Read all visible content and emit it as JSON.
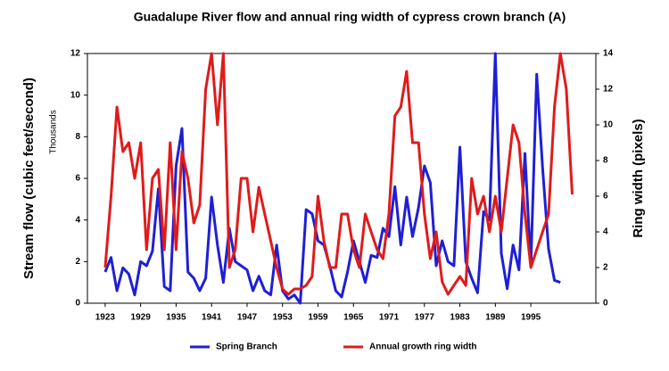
{
  "chart_data": {
    "type": "line",
    "title": "Guadalupe River flow and annual ring width of cypress crown branch (A)",
    "y_label": "Stream flow (cubic feet/second)",
    "y_unit_label": "Thousands",
    "y2_label": "Ring width (pixels)",
    "x": [
      1923,
      1924,
      1925,
      1926,
      1927,
      1928,
      1929,
      1930,
      1931,
      1932,
      1933,
      1934,
      1935,
      1936,
      1937,
      1938,
      1939,
      1940,
      1941,
      1942,
      1943,
      1944,
      1945,
      1946,
      1947,
      1948,
      1949,
      1950,
      1951,
      1952,
      1953,
      1954,
      1955,
      1956,
      1957,
      1958,
      1959,
      1960,
      1961,
      1962,
      1963,
      1964,
      1965,
      1966,
      1967,
      1968,
      1969,
      1970,
      1971,
      1972,
      1973,
      1974,
      1975,
      1976,
      1977,
      1978,
      1979,
      1980,
      1981,
      1982,
      1983,
      1984,
      1985,
      1986,
      1987,
      1988,
      1989,
      1990,
      1991,
      1992,
      1993,
      1994,
      1995,
      1996,
      1997,
      1998,
      1999,
      2000,
      2001,
      2002
    ],
    "xlim": [
      1920,
      2006
    ],
    "xticks": [
      1923,
      1929,
      1935,
      1941,
      1947,
      1953,
      1959,
      1965,
      1971,
      1977,
      1983,
      1989,
      1995
    ],
    "ylim": [
      0,
      12
    ],
    "yticks": [
      0,
      2,
      4,
      6,
      8,
      10,
      12
    ],
    "y2lim": [
      0,
      14
    ],
    "y2ticks": [
      0,
      2,
      4,
      6,
      8,
      10,
      12,
      14
    ],
    "legend": "bottom",
    "series": [
      {
        "name": "Spring Branch",
        "color": "#1f1fd6",
        "values": [
          1.5,
          2.2,
          0.6,
          1.7,
          1.4,
          0.4,
          2.0,
          1.8,
          2.5,
          5.5,
          0.8,
          0.6,
          6.6,
          8.4,
          1.5,
          1.2,
          0.6,
          1.2,
          5.1,
          2.8,
          1.0,
          3.6,
          2.0,
          1.8,
          1.6,
          0.6,
          1.3,
          0.6,
          0.4,
          2.8,
          0.6,
          0.2,
          0.4,
          0.0,
          4.5,
          4.3,
          3.0,
          2.8,
          1.8,
          0.6,
          0.3,
          1.5,
          3.0,
          2.0,
          1.0,
          2.3,
          2.2,
          3.6,
          3.2,
          5.6,
          2.8,
          5.1,
          3.2,
          4.6,
          6.6,
          5.8,
          1.8,
          3.0,
          2.0,
          1.8,
          7.5,
          2.0,
          1.2,
          0.5,
          4.4,
          4.0,
          12.0,
          2.4,
          0.7,
          2.8,
          1.6,
          7.2,
          1.8,
          11.0,
          6.5,
          2.6,
          1.1,
          1.0,
          null,
          null
        ]
      },
      {
        "name": "Annual growth ring width",
        "color": "#e01b1b",
        "axis": "y2",
        "values": [
          2.0,
          6.0,
          11.0,
          8.5,
          9.0,
          7.0,
          9.0,
          3.0,
          7.0,
          7.5,
          3.0,
          9.0,
          3.0,
          8.5,
          7.0,
          4.5,
          5.5,
          12.0,
          14.0,
          10.0,
          14.0,
          2.0,
          3.0,
          7.0,
          7.0,
          4.0,
          6.5,
          5.0,
          3.5,
          2.0,
          0.8,
          0.5,
          0.8,
          0.8,
          1.0,
          1.5,
          6.0,
          3.5,
          2.0,
          2.0,
          5.0,
          5.0,
          3.0,
          2.0,
          5.0,
          4.0,
          3.0,
          2.5,
          5.0,
          10.5,
          11.0,
          13.0,
          9.0,
          9.0,
          5.0,
          2.5,
          4.0,
          1.2,
          0.5,
          1.0,
          1.5,
          1.0,
          7.0,
          5.0,
          6.0,
          4.0,
          6.0,
          4.0,
          7.0,
          10.0,
          9.0,
          5.0,
          2.0,
          3.0,
          4.0,
          5.0,
          11.0,
          14.0,
          12.0,
          6.1
        ]
      }
    ]
  }
}
